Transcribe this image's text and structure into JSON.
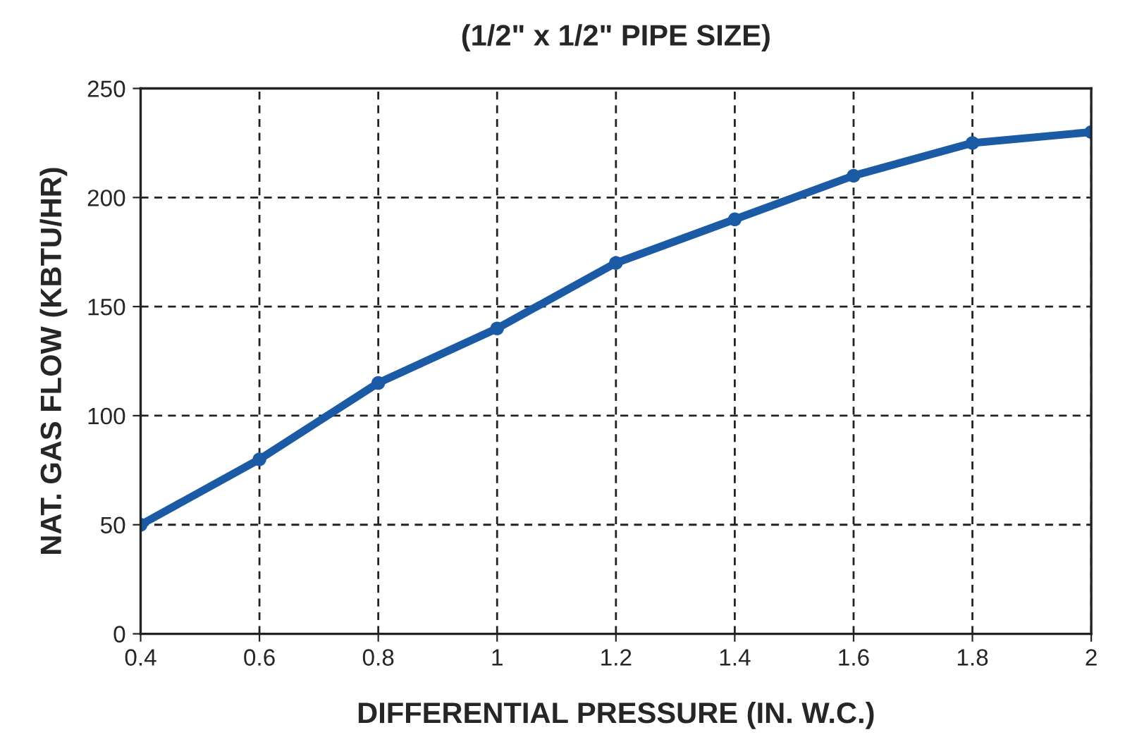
{
  "chart_data": {
    "type": "line",
    "title": "(1/2\" x 1/2\" PIPE SIZE)",
    "xlabel": "DIFFERENTIAL PRESSURE (IN. W.C.)",
    "ylabel": "NAT. GAS FLOW (KBTU/HR)",
    "x": [
      0.4,
      0.6,
      0.8,
      1.0,
      1.2,
      1.4,
      1.6,
      1.8,
      2.0
    ],
    "series": [
      {
        "color": "#1b5aa5",
        "values": [
          50,
          80,
          115,
          140,
          170,
          190,
          210,
          225,
          230
        ]
      }
    ],
    "xlim": [
      0.4,
      2
    ],
    "xticks": [
      0.4,
      0.6,
      0.8,
      1,
      1.2,
      1.4,
      1.6,
      1.8,
      2
    ],
    "ylim": [
      0,
      250
    ],
    "yticks": [
      0,
      50,
      100,
      150,
      200,
      250
    ],
    "grid": true,
    "marker": "circle",
    "line_style": "solid"
  }
}
